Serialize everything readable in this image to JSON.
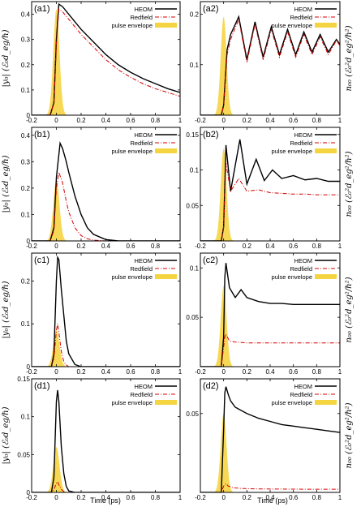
{
  "figure": {
    "xlabel": "Time (ps)",
    "x_ticks": [
      "-0.2",
      "0",
      "0.2",
      "0.4",
      "0.6",
      "0.8",
      "1"
    ],
    "legend": [
      "HEOM",
      "Redfield",
      "pulse envelope"
    ],
    "colors": {
      "heom": "#000000",
      "redfield": "#d40000",
      "pulse": "#f5d442"
    },
    "ylabel_left": "|y₀| (ℰ₀d_eg/ℏ)",
    "ylabel_right": "n₀₀ (ℰ₀²d_eg²/ℏ²)"
  },
  "chart_data": [
    {
      "panel": "(a1)",
      "type": "line",
      "xlim": [
        -0.2,
        1
      ],
      "ylim": [
        0,
        0.45
      ],
      "yticks": [
        0,
        0.1,
        0.2,
        0.3,
        0.4
      ],
      "ytick_labels": [
        "0",
        "0.1",
        "0.2",
        "0.3",
        "0.4"
      ],
      "legend_placement": "top-right",
      "series": [
        {
          "name": "HEOM",
          "x": [
            -0.2,
            -0.05,
            -0.02,
            0,
            0.02,
            0.05,
            0.1,
            0.2,
            0.3,
            0.4,
            0.5,
            0.6,
            0.7,
            0.8,
            0.9,
            1.0
          ],
          "y": [
            0,
            0,
            0.05,
            0.3,
            0.44,
            0.43,
            0.4,
            0.34,
            0.29,
            0.24,
            0.2,
            0.17,
            0.145,
            0.125,
            0.105,
            0.09
          ]
        },
        {
          "name": "Redfield",
          "x": [
            -0.2,
            -0.05,
            -0.02,
            0,
            0.02,
            0.05,
            0.1,
            0.2,
            0.3,
            0.4,
            0.5,
            0.6,
            0.7,
            0.8,
            0.9,
            1.0
          ],
          "y": [
            0,
            0,
            0.05,
            0.28,
            0.42,
            0.41,
            0.38,
            0.32,
            0.27,
            0.22,
            0.18,
            0.15,
            0.125,
            0.105,
            0.09,
            0.075
          ]
        },
        {
          "name": "pulse envelope",
          "center": 0,
          "sigma": 0.025,
          "peak": 0.42
        }
      ]
    },
    {
      "panel": "(a2)",
      "type": "line",
      "xlim": [
        -0.2,
        1
      ],
      "ylim": [
        0,
        0.225
      ],
      "yticks": [
        0.1,
        0.2
      ],
      "ytick_labels": [
        "0.1",
        "0.2"
      ],
      "legend_placement": "top-right",
      "series": [
        {
          "name": "HEOM",
          "x": [
            -0.2,
            -0.02,
            0,
            0.03,
            0.06,
            0.13,
            0.2,
            0.27,
            0.34,
            0.41,
            0.48,
            0.55,
            0.62,
            0.69,
            0.76,
            0.83,
            0.9,
            0.97,
            1.0
          ],
          "y": [
            0,
            0,
            0.02,
            0.13,
            0.16,
            0.195,
            0.11,
            0.185,
            0.115,
            0.175,
            0.12,
            0.17,
            0.12,
            0.165,
            0.125,
            0.16,
            0.125,
            0.15,
            0.14
          ]
        },
        {
          "name": "Redfield",
          "x": [
            -0.2,
            -0.02,
            0,
            0.03,
            0.06,
            0.13,
            0.2,
            0.27,
            0.34,
            0.41,
            0.48,
            0.55,
            0.62,
            0.69,
            0.76,
            0.83,
            0.9,
            0.97,
            1.0
          ],
          "y": [
            0,
            0,
            0.02,
            0.12,
            0.15,
            0.19,
            0.105,
            0.18,
            0.11,
            0.17,
            0.115,
            0.165,
            0.115,
            0.16,
            0.12,
            0.155,
            0.12,
            0.148,
            0.138
          ]
        },
        {
          "name": "pulse envelope",
          "center": 0,
          "sigma": 0.025,
          "peak": 0.195
        }
      ]
    },
    {
      "panel": "(b1)",
      "type": "line",
      "xlim": [
        -0.2,
        1
      ],
      "ylim": [
        0,
        0.43
      ],
      "yticks": [
        0,
        0.1,
        0.2,
        0.3,
        0.4
      ],
      "ytick_labels": [
        "0",
        "0.1",
        "0.2",
        "0.3",
        "0.4"
      ],
      "legend_placement": "top-right",
      "series": [
        {
          "name": "HEOM",
          "x": [
            -0.2,
            -0.05,
            -0.02,
            0,
            0.03,
            0.05,
            0.08,
            0.1,
            0.15,
            0.2,
            0.25,
            0.3,
            0.4,
            0.5,
            1.0
          ],
          "y": [
            0,
            0,
            0.05,
            0.24,
            0.37,
            0.35,
            0.3,
            0.26,
            0.17,
            0.1,
            0.05,
            0.025,
            0.005,
            0,
            0
          ]
        },
        {
          "name": "Redfield",
          "x": [
            -0.2,
            -0.05,
            -0.02,
            0,
            0.02,
            0.05,
            0.08,
            0.1,
            0.15,
            0.2,
            0.25,
            0.3,
            0.4,
            1.0
          ],
          "y": [
            0,
            0,
            0.04,
            0.2,
            0.26,
            0.22,
            0.15,
            0.11,
            0.05,
            0.02,
            0.008,
            0.003,
            0,
            0
          ]
        },
        {
          "name": "pulse envelope",
          "center": 0,
          "sigma": 0.025,
          "peak": 0.23
        }
      ]
    },
    {
      "panel": "(b2)",
      "type": "line",
      "xlim": [
        -0.2,
        1
      ],
      "ylim": [
        0,
        0.16
      ],
      "yticks": [
        0.05,
        0.1,
        0.15
      ],
      "ytick_labels": [
        "0.05",
        "0.1",
        "0.15"
      ],
      "legend_placement": "top-right",
      "series": [
        {
          "name": "HEOM",
          "x": [
            -0.2,
            -0.02,
            0,
            0.02,
            0.06,
            0.14,
            0.2,
            0.28,
            0.35,
            0.42,
            0.5,
            0.6,
            0.7,
            0.8,
            0.9,
            1.0
          ],
          "y": [
            0,
            0,
            0.02,
            0.135,
            0.07,
            0.143,
            0.08,
            0.115,
            0.085,
            0.1,
            0.088,
            0.092,
            0.086,
            0.088,
            0.084,
            0.084
          ]
        },
        {
          "name": "Redfield",
          "x": [
            -0.2,
            -0.02,
            0,
            0.02,
            0.06,
            0.13,
            0.2,
            0.3,
            0.4,
            0.5,
            0.6,
            0.7,
            0.8,
            0.9,
            1.0
          ],
          "y": [
            0,
            0,
            0.02,
            0.11,
            0.07,
            0.088,
            0.07,
            0.072,
            0.068,
            0.067,
            0.066,
            0.066,
            0.065,
            0.065,
            0.065
          ]
        },
        {
          "name": "pulse envelope",
          "center": 0,
          "sigma": 0.025,
          "peak": 0.13
        }
      ]
    },
    {
      "panel": "(c1)",
      "type": "line",
      "xlim": [
        -0.2,
        1
      ],
      "ylim": [
        0,
        0.265
      ],
      "yticks": [
        0,
        0.1,
        0.2
      ],
      "ytick_labels": [
        "0",
        "0.1",
        "0.2"
      ],
      "legend_placement": "top-right",
      "series": [
        {
          "name": "HEOM",
          "x": [
            -0.2,
            -0.04,
            -0.02,
            0,
            0.01,
            0.02,
            0.04,
            0.06,
            0.08,
            0.1,
            0.15,
            0.2,
            1.0
          ],
          "y": [
            0,
            0,
            0.03,
            0.2,
            0.255,
            0.25,
            0.18,
            0.12,
            0.06,
            0.03,
            0.005,
            0,
            0
          ]
        },
        {
          "name": "Redfield",
          "x": [
            -0.2,
            -0.04,
            -0.02,
            0,
            0.01,
            0.02,
            0.04,
            0.06,
            0.08,
            0.1,
            1.0
          ],
          "y": [
            0,
            0,
            0.02,
            0.085,
            0.1,
            0.08,
            0.035,
            0.012,
            0.004,
            0,
            0
          ]
        },
        {
          "name": "pulse envelope",
          "center": 0,
          "sigma": 0.025,
          "peak": 0.085
        }
      ]
    },
    {
      "panel": "(c2)",
      "type": "line",
      "xlim": [
        -0.2,
        1
      ],
      "ylim": [
        0,
        0.115
      ],
      "yticks": [
        0.05,
        0.1
      ],
      "ytick_labels": [
        "0.05",
        "0.1"
      ],
      "legend_placement": "top-right",
      "series": [
        {
          "name": "HEOM",
          "x": [
            -0.2,
            -0.02,
            0,
            0.01,
            0.02,
            0.05,
            0.1,
            0.15,
            0.2,
            0.3,
            0.4,
            0.5,
            0.6,
            0.7,
            0.8,
            0.9,
            1.0
          ],
          "y": [
            0,
            0,
            0.03,
            0.09,
            0.105,
            0.08,
            0.07,
            0.078,
            0.07,
            0.066,
            0.064,
            0.064,
            0.063,
            0.063,
            0.063,
            0.063,
            0.063
          ]
        },
        {
          "name": "Redfield",
          "x": [
            -0.2,
            -0.02,
            0,
            0.01,
            0.02,
            0.05,
            0.1,
            0.2,
            0.4,
            0.6,
            0.8,
            1.0
          ],
          "y": [
            0,
            0,
            0.02,
            0.03,
            0.033,
            0.026,
            0.025,
            0.024,
            0.024,
            0.024,
            0.024,
            0.024
          ]
        },
        {
          "name": "pulse envelope",
          "center": 0,
          "sigma": 0.025,
          "peak": 0.082
        }
      ]
    },
    {
      "panel": "(d1)",
      "type": "line",
      "xlim": [
        -0.2,
        1
      ],
      "ylim": [
        0,
        0.15
      ],
      "yticks": [
        0,
        0.05,
        0.1,
        0.15
      ],
      "ytick_labels": [
        "0",
        "0.05",
        "0.1",
        "0.15"
      ],
      "legend_placement": "top-right",
      "series": [
        {
          "name": "HEOM",
          "x": [
            -0.2,
            -0.04,
            -0.02,
            0,
            0.01,
            0.02,
            0.04,
            0.06,
            0.08,
            0.1,
            0.15,
            1.0
          ],
          "y": [
            0,
            0,
            0.02,
            0.12,
            0.135,
            0.12,
            0.06,
            0.025,
            0.008,
            0.002,
            0,
            0
          ]
        },
        {
          "name": "Redfield",
          "x": [
            -0.2,
            -0.04,
            -0.02,
            0,
            0.01,
            0.02,
            0.04,
            0.06,
            0.08,
            1.0
          ],
          "y": [
            0,
            0,
            0.004,
            0.012,
            0.014,
            0.01,
            0.004,
            0.001,
            0,
            0
          ]
        },
        {
          "name": "pulse envelope",
          "center": 0,
          "sigma": 0.025,
          "peak": 0.06
        }
      ]
    },
    {
      "panel": "(d2)",
      "type": "line",
      "xlim": [
        -0.2,
        1
      ],
      "ylim": [
        0,
        0.072
      ],
      "yticks": [
        0.05
      ],
      "ytick_labels": [
        "0.05"
      ],
      "legend_placement": "top-right",
      "series": [
        {
          "name": "HEOM",
          "x": [
            -0.2,
            -0.02,
            0,
            0.01,
            0.02,
            0.04,
            0.06,
            0.1,
            0.2,
            0.3,
            0.4,
            0.5,
            0.6,
            0.7,
            0.8,
            0.9,
            1.0
          ],
          "y": [
            0,
            0,
            0.04,
            0.063,
            0.067,
            0.062,
            0.058,
            0.054,
            0.05,
            0.047,
            0.045,
            0.043,
            0.042,
            0.041,
            0.04,
            0.039,
            0.038
          ]
        },
        {
          "name": "Redfield",
          "x": [
            -0.2,
            -0.02,
            0,
            0.02,
            0.04,
            0.08,
            0.15,
            0.3,
            0.5,
            0.7,
            1.0
          ],
          "y": [
            0,
            0,
            0.004,
            0.0055,
            0.004,
            0.003,
            0.0025,
            0.0022,
            0.0021,
            0.002,
            0.002
          ]
        },
        {
          "name": "pulse envelope",
          "center": 0,
          "sigma": 0.025,
          "peak": 0.05
        }
      ]
    }
  ]
}
